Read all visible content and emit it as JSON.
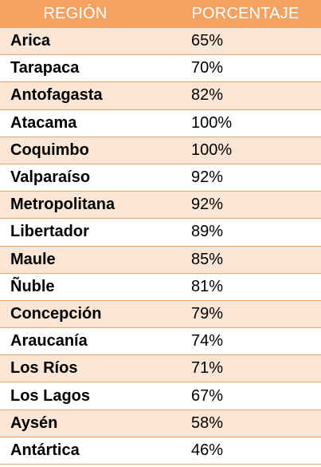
{
  "table": {
    "headers": {
      "region": "REGIÓN",
      "percentage": "PORCENTAJE"
    },
    "rows": [
      {
        "region": "Arica",
        "percentage": "65%"
      },
      {
        "region": "Tarapaca",
        "percentage": "70%"
      },
      {
        "region": "Antofagasta",
        "percentage": "82%"
      },
      {
        "region": "Atacama",
        "percentage": "100%"
      },
      {
        "region": "Coquimbo",
        "percentage": "100%"
      },
      {
        "region": "Valparaíso",
        "percentage": "92%"
      },
      {
        "region": "Metropolitana",
        "percentage": "92%"
      },
      {
        "region": "Libertador",
        "percentage": "89%"
      },
      {
        "region": "Maule",
        "percentage": "85%"
      },
      {
        "region": "Ñuble",
        "percentage": "81%"
      },
      {
        "region": "Concepción",
        "percentage": "79%"
      },
      {
        "region": "Araucanía",
        "percentage": "74%"
      },
      {
        "region": "Los Ríos",
        "percentage": "71%"
      },
      {
        "region": "Los Lagos",
        "percentage": "67%"
      },
      {
        "region": "Aysén",
        "percentage": "58%"
      },
      {
        "region": "Antártica",
        "percentage": "46%"
      }
    ]
  },
  "colors": {
    "header_bg": "#f4a261",
    "header_text": "#ffffff",
    "stripe_bg": "#fbe6d6",
    "border": "#f4a261"
  }
}
